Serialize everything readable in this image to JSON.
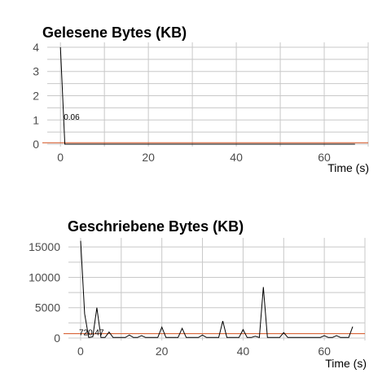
{
  "chart_data": [
    {
      "type": "line",
      "title": "Gelesene Bytes (KB)",
      "xlabel": "Time (s)",
      "ylabel": "",
      "xlim": [
        -3,
        70
      ],
      "ylim": [
        -0.1,
        4.2
      ],
      "xticks": [
        0,
        20,
        40,
        60
      ],
      "yticks": [
        0,
        1,
        2,
        3,
        4
      ],
      "grid": true,
      "reference_line": {
        "value": 0.06,
        "label": "0.06",
        "color": "#d2501e"
      },
      "x": [
        0,
        1,
        2,
        3,
        4,
        5,
        6,
        7,
        8,
        9,
        10,
        11,
        12,
        13,
        14,
        15,
        16,
        17,
        18,
        19,
        20,
        21,
        22,
        23,
        24,
        25,
        26,
        27,
        28,
        29,
        30,
        31,
        32,
        33,
        34,
        35,
        36,
        37,
        38,
        39,
        40,
        41,
        42,
        43,
        44,
        45,
        46,
        47,
        48,
        49,
        50,
        51,
        52,
        53,
        54,
        55,
        56,
        57,
        58,
        59,
        60,
        61,
        62,
        63,
        64,
        65,
        66,
        67
      ],
      "y": [
        4,
        0,
        0,
        0,
        0,
        0,
        0,
        0,
        0,
        0,
        0,
        0,
        0,
        0,
        0,
        0,
        0,
        0,
        0,
        0,
        0,
        0,
        0,
        0,
        0,
        0,
        0,
        0,
        0,
        0,
        0,
        0,
        0,
        0,
        0,
        0,
        0,
        0,
        0,
        0,
        0,
        0,
        0,
        0,
        0,
        0,
        0,
        0,
        0,
        0,
        0,
        0,
        0,
        0,
        0,
        0,
        0,
        0,
        0,
        0,
        0,
        0,
        0,
        0,
        0,
        0,
        0,
        0
      ]
    },
    {
      "type": "line",
      "title": "Geschriebene Bytes (KB)",
      "xlabel": "Time (s)",
      "ylabel": "",
      "xlim": [
        -3,
        70
      ],
      "ylim": [
        -400,
        16500
      ],
      "xticks": [
        0,
        20,
        40,
        60
      ],
      "yticks": [
        0,
        5000,
        10000,
        15000
      ],
      "grid": true,
      "reference_line": {
        "value": 720.47,
        "label": "720.47",
        "color": "#d2501e"
      },
      "x": [
        0,
        1,
        2,
        3,
        4,
        5,
        6,
        7,
        8,
        9,
        10,
        11,
        12,
        13,
        14,
        15,
        16,
        17,
        18,
        19,
        20,
        21,
        22,
        23,
        24,
        25,
        26,
        27,
        28,
        29,
        30,
        31,
        32,
        33,
        34,
        35,
        36,
        37,
        38,
        39,
        40,
        41,
        42,
        43,
        44,
        45,
        46,
        47,
        48,
        49,
        50,
        51,
        52,
        53,
        54,
        55,
        56,
        57,
        58,
        59,
        60,
        61,
        62,
        63,
        64,
        65,
        66,
        67
      ],
      "y": [
        16000,
        4000,
        100,
        200,
        5000,
        100,
        100,
        1000,
        100,
        100,
        100,
        100,
        500,
        100,
        100,
        400,
        100,
        100,
        100,
        100,
        1800,
        100,
        100,
        100,
        100,
        1600,
        100,
        100,
        100,
        100,
        500,
        100,
        100,
        100,
        100,
        2800,
        100,
        100,
        100,
        100,
        1400,
        100,
        100,
        300,
        100,
        8400,
        100,
        100,
        100,
        100,
        900,
        100,
        100,
        100,
        100,
        100,
        100,
        100,
        100,
        100,
        400,
        100,
        100,
        400,
        100,
        100,
        100,
        1900
      ]
    }
  ]
}
